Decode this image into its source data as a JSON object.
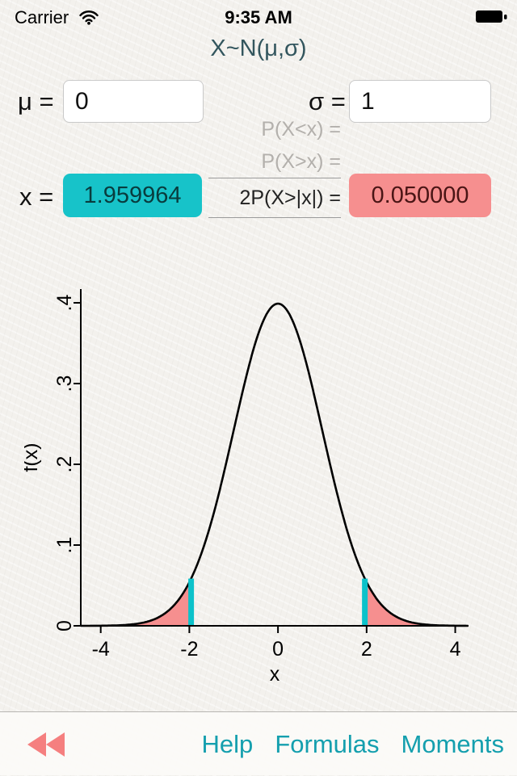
{
  "status_bar": {
    "carrier": "Carrier",
    "time": "9:35 AM"
  },
  "title": "X~N(μ,σ)",
  "inputs": {
    "mu_label": "μ =",
    "mu_value": "0",
    "sigma_label": "σ =",
    "sigma_value": "1",
    "x_label": "x =",
    "x_value": "1.959964",
    "p_less_label": "P(X<x) =",
    "p_greater_label": "P(X>x) =",
    "two_tail_label": "2P(X>|x|) =",
    "two_tail_value": "0.050000"
  },
  "toolbar": {
    "items": [
      "Help",
      "Formulas",
      "Moments"
    ]
  },
  "colors": {
    "teal_field": "#17c3c9",
    "pink_field": "#f68f8f",
    "link_teal": "#149fae",
    "title_color": "#33565e"
  },
  "chart_data": {
    "type": "area",
    "title": "",
    "distribution": "normal",
    "mu": 0,
    "sigma": 1,
    "critical_x": 1.959964,
    "two_tail_probability": 0.05,
    "peak_density": 0.3989,
    "x_ticks": [
      -4,
      -2,
      0,
      2,
      4
    ],
    "y_ticks": [
      0,
      0.1,
      0.2,
      0.3,
      0.4
    ],
    "y_tick_labels": [
      "0",
      ".1",
      ".2",
      ".3",
      ".4"
    ],
    "xlabel": "x",
    "ylabel": "f(x)",
    "xlim": [
      -4.45,
      4.3
    ],
    "ylim": [
      0,
      0.417
    ],
    "grid": false,
    "curve_color": "#000000",
    "tail_fill": "#f68f8f",
    "marker_color": "#0cc2ca"
  }
}
